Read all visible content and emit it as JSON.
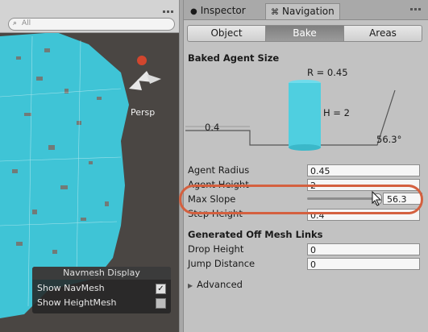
{
  "scene": {
    "search_placeholder": "All",
    "persp_label": "Persp",
    "navmesh_display": {
      "title": "Navmesh Display",
      "show_navmesh": {
        "label": "Show NavMesh",
        "checked": true
      },
      "show_heightmesh": {
        "label": "Show HeightMesh",
        "checked": false
      }
    },
    "colors": {
      "navmesh": "#3fc4d6",
      "ground": "#4a4643",
      "holes": "#7a6f68"
    }
  },
  "inspector": {
    "tabs": [
      {
        "label": "Inspector",
        "icon": "info-icon",
        "active": false
      },
      {
        "label": "Navigation",
        "icon": "navigation-icon",
        "active": true
      }
    ],
    "segments": [
      "Object",
      "Bake",
      "Areas"
    ],
    "selected_segment": "Bake",
    "baked_agent_size": {
      "title": "Baked Agent Size",
      "radius_label": "R = 0.45",
      "height_label": "H = 2",
      "step_label": "0.4",
      "slope_label": "56.3°",
      "agent_color": "#4fcfe0"
    },
    "fields": [
      {
        "label": "Agent Radius",
        "value": "0.45"
      },
      {
        "label": "Agent Height",
        "value": "2"
      }
    ],
    "max_slope": {
      "label": "Max Slope",
      "value": "56.3",
      "fraction": 0.939
    },
    "step_height": {
      "label": "Step Height",
      "value": "0.4"
    },
    "offmesh": {
      "title": "Generated Off Mesh Links",
      "fields": [
        {
          "label": "Drop Height",
          "value": "0"
        },
        {
          "label": "Jump Distance",
          "value": "0"
        }
      ]
    },
    "advanced_label": "Advanced",
    "highlight_color": "#d4603f"
  }
}
